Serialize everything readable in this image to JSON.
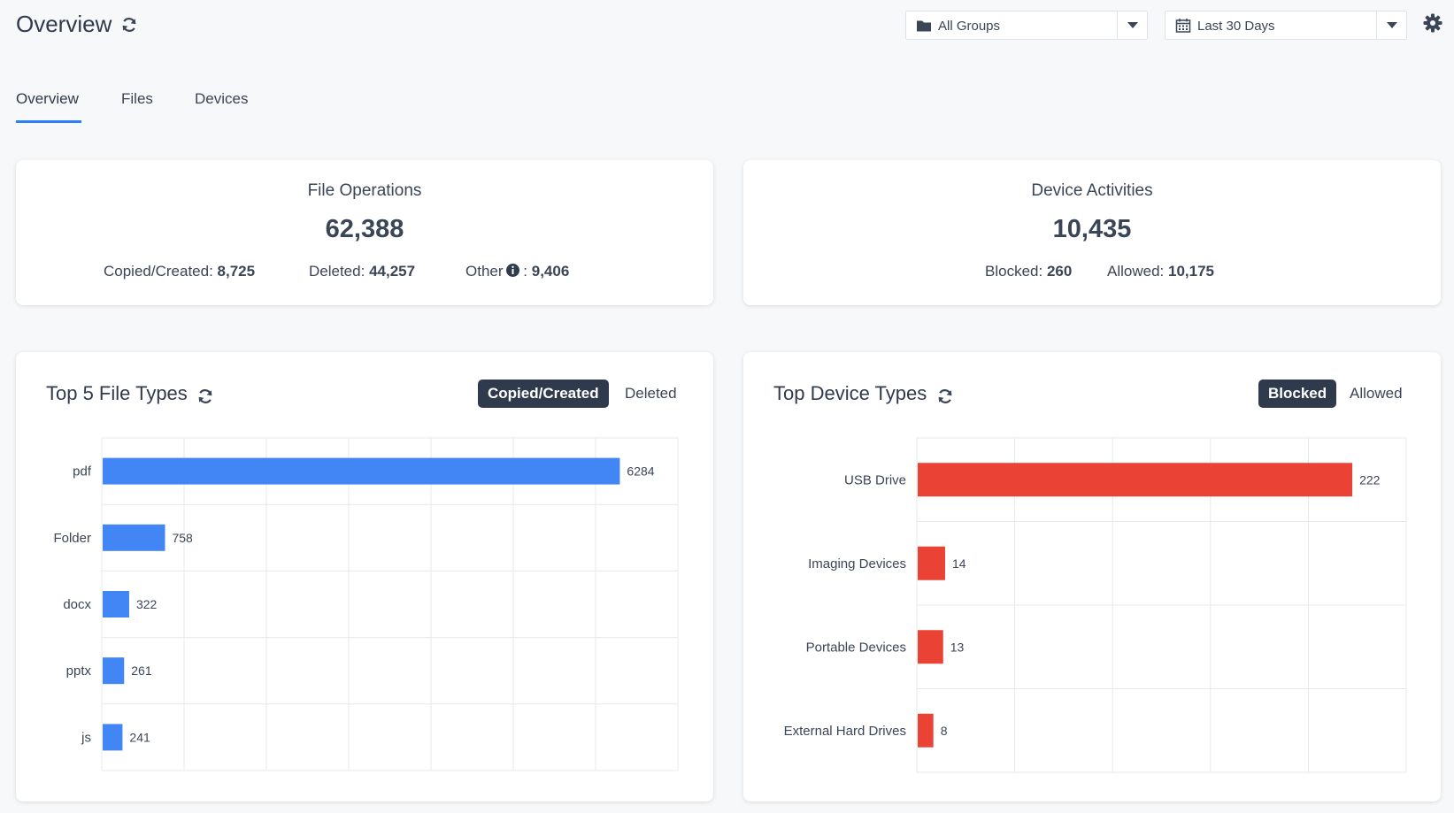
{
  "header": {
    "title": "Overview",
    "groups_dropdown": {
      "value": "All Groups"
    },
    "range_dropdown": {
      "value": "Last 30 Days"
    }
  },
  "tabs": [
    {
      "label": "Overview",
      "active": true
    },
    {
      "label": "Files",
      "active": false
    },
    {
      "label": "Devices",
      "active": false
    }
  ],
  "file_operations": {
    "title": "File Operations",
    "total": "62,388",
    "copied_label": "Copied/Created:",
    "copied_value": "8,725",
    "deleted_label": "Deleted:",
    "deleted_value": "44,257",
    "other_label": "Other",
    "other_sep": ":",
    "other_value": "9,406"
  },
  "device_activities": {
    "title": "Device Activities",
    "total": "10,435",
    "blocked_label": "Blocked:",
    "blocked_value": "260",
    "allowed_label": "Allowed:",
    "allowed_value": "10,175"
  },
  "file_types_panel": {
    "title": "Top 5 File Types",
    "toggle_active": "Copied/Created",
    "toggle_inactive": "Deleted"
  },
  "device_types_panel": {
    "title": "Top Device Types",
    "toggle_active": "Blocked",
    "toggle_inactive": "Allowed"
  },
  "colors": {
    "file_bar": "#4285f4",
    "device_bar": "#ea4335",
    "tab_accent": "#2d7ef7",
    "toggle_bg": "#2f3b4d"
  },
  "icons": [
    "refresh-icon",
    "folder-icon",
    "calendar-icon",
    "chevron-down-icon",
    "gear-icon",
    "info-icon"
  ],
  "chart_data": [
    {
      "type": "bar",
      "orientation": "horizontal",
      "title": "Top 5 File Types",
      "categories": [
        "pdf",
        "Folder",
        "docx",
        "pptx",
        "js"
      ],
      "values": [
        6284,
        758,
        322,
        261,
        241
      ],
      "xlim": [
        0,
        7000
      ],
      "grid": true
    },
    {
      "type": "bar",
      "orientation": "horizontal",
      "title": "Top Device Types",
      "categories": [
        "USB Drive",
        "Imaging Devices",
        "Portable Devices",
        "External Hard Drives"
      ],
      "values": [
        222,
        14,
        13,
        8
      ],
      "xlim": [
        0,
        250
      ],
      "grid": true
    }
  ]
}
